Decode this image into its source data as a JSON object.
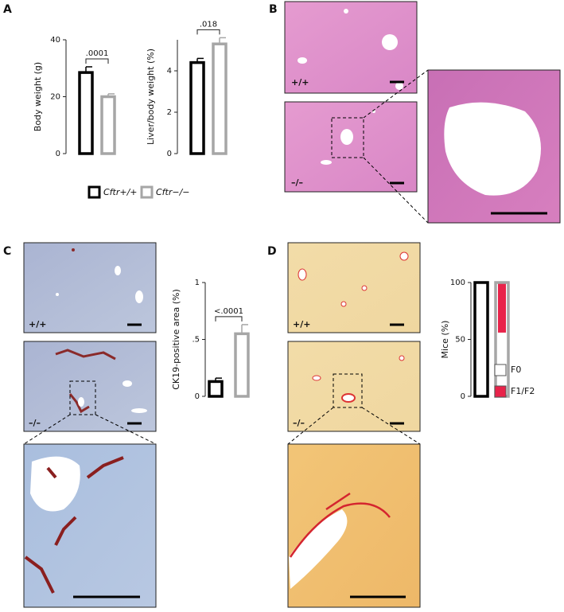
{
  "panel_labels": [
    "A",
    "B",
    "C",
    "D"
  ],
  "image_labels": {
    "B": [
      "+/+",
      "–/–"
    ],
    "C": [
      "+/+",
      "–/–"
    ],
    "D": [
      "+/+",
      "–/–"
    ]
  },
  "legend": [
    {
      "name": "Cftr+/+",
      "color": "#000000"
    },
    {
      "name": "Cftr−/−",
      "color": "#a6a6a6"
    }
  ],
  "chart_data": [
    {
      "type": "bar",
      "y_label": "Body weight (g)",
      "values": [
        28.5,
        20
      ],
      "errors": [
        2,
        1
      ],
      "colors": [
        "#000000",
        "#a6a6a6"
      ],
      "ylim": [
        0,
        40
      ],
      "yticks": [
        0,
        20,
        40
      ],
      "annotation": ".0001"
    },
    {
      "type": "bar",
      "y_label": "Liver/body weight (%)",
      "values": [
        4.4,
        5.3
      ],
      "errors": [
        0.2,
        0.3
      ],
      "colors": [
        "#000000",
        "#a6a6a6"
      ],
      "ylim": [
        0,
        5.5
      ],
      "yticks": [
        0,
        2,
        4
      ],
      "annotation": ".018"
    },
    {
      "type": "bar",
      "y_label": "CK19-positive area (%)",
      "values": [
        0.13,
        0.55
      ],
      "errors": [
        0.03,
        0.08
      ],
      "colors": [
        "#000000",
        "#a6a6a6"
      ],
      "ylim": [
        0,
        1
      ],
      "yticks": [
        0,
        {
          "value": 0.5,
          "label": ".5"
        },
        1
      ],
      "annotation": "<.0001"
    },
    {
      "type": "stacked_bar",
      "y_label": "Mice (%)",
      "outline_colors": [
        "#000000",
        "#a6a6a6"
      ],
      "series": [
        {
          "name": "F0",
          "color": "#ffffff",
          "values": [
            100,
            56
          ]
        },
        {
          "name": "F1/F2",
          "color": "#e8234a",
          "values": [
            0,
            44
          ]
        }
      ],
      "ylim": [
        0,
        100
      ],
      "yticks": [
        0,
        50,
        100
      ]
    }
  ]
}
